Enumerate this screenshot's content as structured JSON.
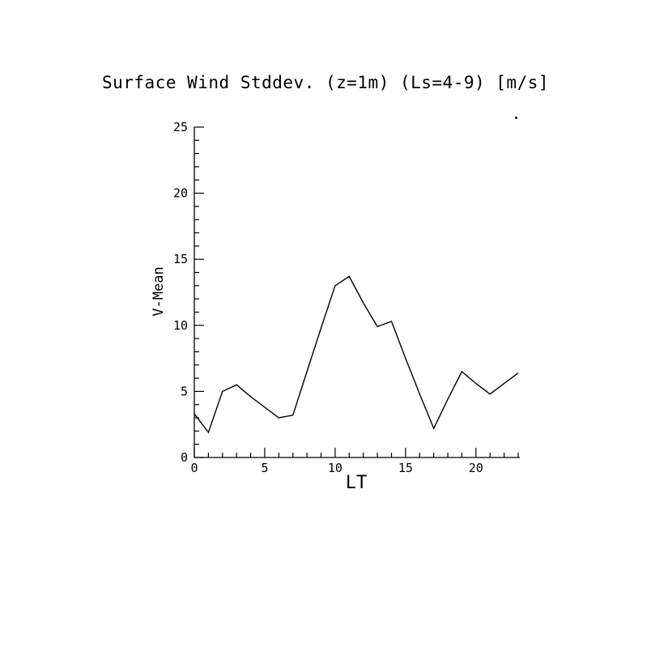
{
  "title": "Surface Wind Stddev. (z=1m) (Ls=4-9) [m/s]",
  "chart_data": {
    "type": "line",
    "title": "Surface Wind Stddev. (z=1m) (Ls=4-9) [m/s]",
    "xlabel": "LT",
    "ylabel": "V-Mean",
    "xlim": [
      0,
      23
    ],
    "ylim": [
      0,
      25
    ],
    "xticks": [
      0,
      5,
      10,
      15,
      20
    ],
    "yticks": [
      0,
      5,
      10,
      15,
      20,
      25
    ],
    "minor_tick_interval": 1,
    "grid": false,
    "legend": "none",
    "line_color": "#000000",
    "x": [
      0,
      1,
      2,
      3,
      4,
      5,
      6,
      7,
      8,
      9,
      10,
      11,
      12,
      13,
      14,
      15,
      16,
      17,
      18,
      19,
      20,
      21,
      22,
      23
    ],
    "values": [
      3.3,
      1.9,
      5.0,
      5.5,
      4.6,
      3.8,
      3.0,
      3.2,
      6.5,
      9.8,
      13.0,
      13.7,
      11.7,
      9.9,
      10.3,
      7.5,
      4.8,
      2.2,
      4.4,
      6.5,
      5.6,
      4.8,
      5.6,
      6.4
    ]
  }
}
